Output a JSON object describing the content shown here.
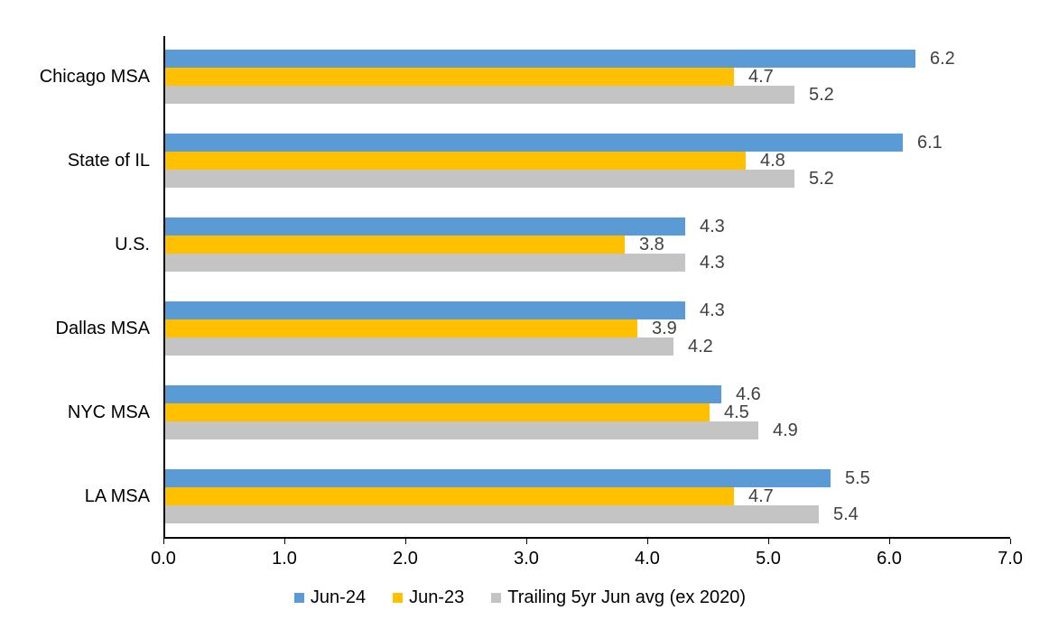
{
  "chart_data": {
    "type": "bar",
    "orientation": "horizontal",
    "title": "",
    "xlabel": "",
    "ylabel": "",
    "categories": [
      "Chicago MSA",
      "State of IL",
      "U.S.",
      "Dallas MSA",
      "NYC MSA",
      "LA MSA"
    ],
    "series": [
      {
        "name": "Jun-24",
        "color": "#5B9BD5",
        "values": [
          6.2,
          6.1,
          4.3,
          4.3,
          4.6,
          5.5
        ]
      },
      {
        "name": "Jun-23",
        "color": "#FFC000",
        "values": [
          4.7,
          4.8,
          3.8,
          3.9,
          4.5,
          4.7
        ]
      },
      {
        "name": "Trailing 5yr Jun avg (ex 2020)",
        "color": "#C4C4C4",
        "values": [
          5.2,
          5.2,
          4.3,
          4.2,
          4.9,
          5.4
        ]
      }
    ],
    "xlim": [
      0.0,
      7.0
    ],
    "x_ticks": [
      "0.0",
      "1.0",
      "2.0",
      "3.0",
      "4.0",
      "5.0",
      "6.0",
      "7.0"
    ],
    "grid": false,
    "legend_position": "bottom",
    "data_labels": true,
    "data_label_color": "#404040",
    "axis_color": "#000000"
  }
}
